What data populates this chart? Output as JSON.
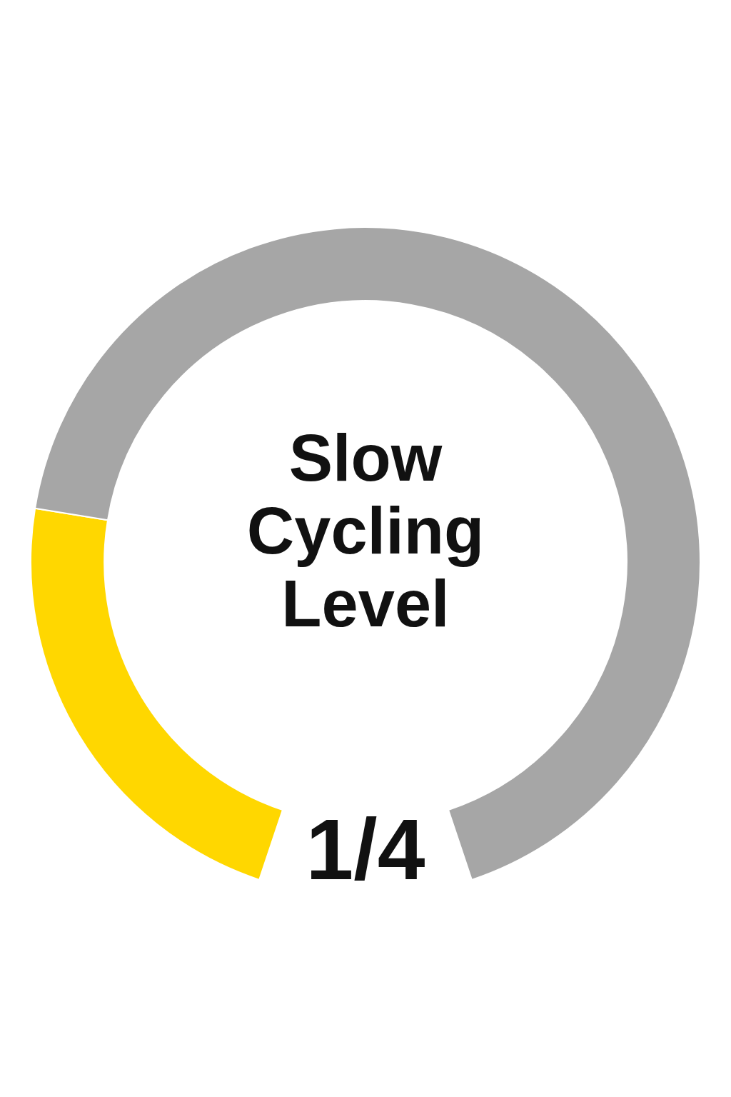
{
  "chart_data": {
    "type": "donut",
    "title": "Slow Cycling Level",
    "categories": [
      null,
      null
    ],
    "values": [
      25,
      75
    ],
    "colors": [
      "#ffd700",
      "#a6a6a6"
    ],
    "annotations": [
      "1/4"
    ]
  }
}
